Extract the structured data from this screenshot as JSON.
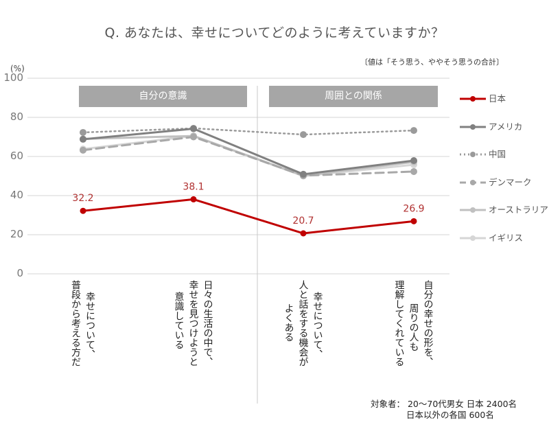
{
  "title": "Q. あなたは、幸せについてどのように考えていますか？",
  "note": "〔値は「そう思う、ややそう思うの合計〕",
  "footnote": {
    "line1": "対象者：  20～70代男女  日本  2400名",
    "line2": "日本以外の各国  600名"
  },
  "chart_data": {
    "type": "line",
    "title": "Q. あなたは、幸せについてどのように考えていますか？",
    "ylabel": "(%)",
    "xlabel": "",
    "ylim": [
      0,
      100
    ],
    "yticks": [
      "0",
      "20",
      "40",
      "60",
      "80",
      "100"
    ],
    "grid": true,
    "legend_position": "right",
    "groups": [
      {
        "label": "自分の意識",
        "categories": [
          0,
          1
        ]
      },
      {
        "label": "周囲との関係",
        "categories": [
          2,
          3
        ]
      }
    ],
    "categories": [
      "普段から考える方だ 幸せについて、",
      "日々の生活の中で、幸せを見つけようと意識している",
      "幸せについて、人と話をする機会がよくある",
      "自分の幸せの形を、周りの人も理解してくれている"
    ],
    "category_lines": [
      [
        "幸せについて、",
        "普段から考える方だ"
      ],
      [
        "日々の生活の中で、",
        "幸せを見つけようと",
        "意識している"
      ],
      [
        "幸せについて、",
        "人と話をする機会が",
        "よくある"
      ],
      [
        "自分の幸せの形を、",
        "周りの人も",
        "理解してくれている"
      ]
    ],
    "series": [
      {
        "name": "日本",
        "values": [
          32.2,
          38.1,
          20.7,
          26.9
        ],
        "color": "#c00000",
        "style": "solid",
        "labels": [
          "32.2",
          "38.1",
          "20.7",
          "26.9"
        ]
      },
      {
        "name": "アメリカ",
        "values": [
          68.8,
          74.2,
          50.9,
          57.9
        ],
        "color": "#808080",
        "style": "solid"
      },
      {
        "name": "中国",
        "values": [
          72.3,
          74.4,
          71.2,
          73.3
        ],
        "color": "#9a9a9a",
        "style": "dotted"
      },
      {
        "name": "デンマーク",
        "values": [
          63.2,
          70.0,
          50.2,
          52.3
        ],
        "color": "#a8a8a8",
        "style": "dashed"
      },
      {
        "name": "オーストラリア",
        "values": [
          69.0,
          70.5,
          50.2,
          57.2
        ],
        "color": "#c0c0c0",
        "style": "solid"
      },
      {
        "name": "イギリス",
        "values": [
          63.8,
          70.5,
          50.0,
          55.8
        ],
        "color": "#d6d6d6",
        "style": "solid"
      }
    ]
  }
}
